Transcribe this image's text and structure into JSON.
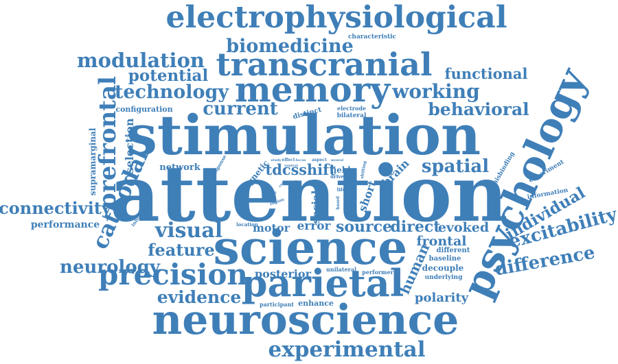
{
  "colors": {
    "word": "#3f7fb8",
    "background": "#ffffff"
  },
  "words": [
    {
      "text": "attention",
      "weight": 100
    },
    {
      "text": "stimulation",
      "weight": 90
    },
    {
      "text": "science",
      "weight": 78
    },
    {
      "text": "neuroscience",
      "weight": 70
    },
    {
      "text": "psychology",
      "weight": 68
    },
    {
      "text": "electrophysiological",
      "weight": 62
    },
    {
      "text": "transcranial",
      "weight": 58
    },
    {
      "text": "memory",
      "weight": 60
    },
    {
      "text": "parietal",
      "weight": 58
    },
    {
      "text": "precision",
      "weight": 50
    },
    {
      "text": "prefrontal",
      "weight": 44
    },
    {
      "text": "experimental",
      "weight": 40
    },
    {
      "text": "cathodal",
      "weight": 38
    },
    {
      "text": "biomedicine",
      "weight": 34
    },
    {
      "text": "modulation",
      "weight": 34
    },
    {
      "text": "technology",
      "weight": 32
    },
    {
      "text": "working",
      "weight": 30
    },
    {
      "text": "visual",
      "weight": 32
    },
    {
      "text": "excitability",
      "weight": 30
    },
    {
      "text": "difference",
      "weight": 30
    },
    {
      "text": "individual",
      "weight": 28
    },
    {
      "text": "behavioral",
      "weight": 28
    },
    {
      "text": "spatial",
      "weight": 28
    },
    {
      "text": "current",
      "weight": 28
    },
    {
      "text": "neurology",
      "weight": 27
    },
    {
      "text": "evidence",
      "weight": 27
    },
    {
      "text": "connectivity",
      "weight": 26
    },
    {
      "text": "feature",
      "weight": 26
    },
    {
      "text": "potential",
      "weight": 25
    },
    {
      "text": "functional",
      "weight": 22
    },
    {
      "text": "source",
      "weight": 22
    },
    {
      "text": "shift",
      "weight": 22
    },
    {
      "text": "tdcs",
      "weight": 22
    },
    {
      "text": "direct",
      "weight": 21
    },
    {
      "text": "human",
      "weight": 21
    },
    {
      "text": "evoked",
      "weight": 20
    },
    {
      "text": "frontal",
      "weight": 20
    },
    {
      "text": "polarity",
      "weight": 19
    },
    {
      "text": "selection",
      "weight": 18
    },
    {
      "text": "posterior",
      "weight": 18
    },
    {
      "text": "error",
      "weight": 18
    },
    {
      "text": "motor",
      "weight": 17
    },
    {
      "text": "short",
      "weight": 17
    },
    {
      "text": "brain",
      "weight": 17
    },
    {
      "text": "social",
      "weight": 16
    },
    {
      "text": "performance",
      "weight": 15
    },
    {
      "text": "network",
      "weight": 15
    },
    {
      "text": "magnetic",
      "weight": 14
    },
    {
      "text": "supramarginal",
      "weight": 13
    },
    {
      "text": "decouple",
      "weight": 13
    },
    {
      "text": "enhance",
      "weight": 12
    },
    {
      "text": "term",
      "weight": 13
    },
    {
      "text": "field",
      "weight": 12
    },
    {
      "text": "configuration",
      "weight": 11
    },
    {
      "text": "distinct",
      "weight": 11
    },
    {
      "text": "baseline",
      "weight": 11
    },
    {
      "text": "different",
      "weight": 11
    },
    {
      "text": "underlying",
      "weight": 10
    },
    {
      "text": "information",
      "weight": 10
    },
    {
      "text": "misbinding",
      "weight": 10
    },
    {
      "text": "experiment",
      "weight": 10
    },
    {
      "text": "characteristic",
      "weight": 10
    },
    {
      "text": "electrode",
      "weight": 10
    },
    {
      "text": "bilateral",
      "weight": 10
    },
    {
      "text": "participant",
      "weight": 9
    },
    {
      "text": "unilateral",
      "weight": 9
    },
    {
      "text": "performer",
      "weight": 9
    },
    {
      "text": "location",
      "weight": 9
    },
    {
      "text": "response",
      "weight": 9
    },
    {
      "text": "influence",
      "weight": 8
    },
    {
      "text": "region",
      "weight": 8
    },
    {
      "text": "scene",
      "weight": 8
    },
    {
      "text": "based",
      "weight": 8
    },
    {
      "text": "shifting",
      "weight": 8
    },
    {
      "text": "drive",
      "weight": 8
    },
    {
      "text": "life",
      "weight": 8
    },
    {
      "text": "aspect",
      "weight": 8
    },
    {
      "text": "neural",
      "weight": 7
    },
    {
      "text": "effect",
      "weight": 8
    },
    {
      "text": "focus",
      "weight": 7
    },
    {
      "text": "study",
      "weight": 7
    },
    {
      "text": "ventral",
      "weight": 7
    },
    {
      "text": "cue",
      "weight": 7
    },
    {
      "text": "guide",
      "weight": 7
    },
    {
      "text": "contrast",
      "weight": 7
    }
  ]
}
